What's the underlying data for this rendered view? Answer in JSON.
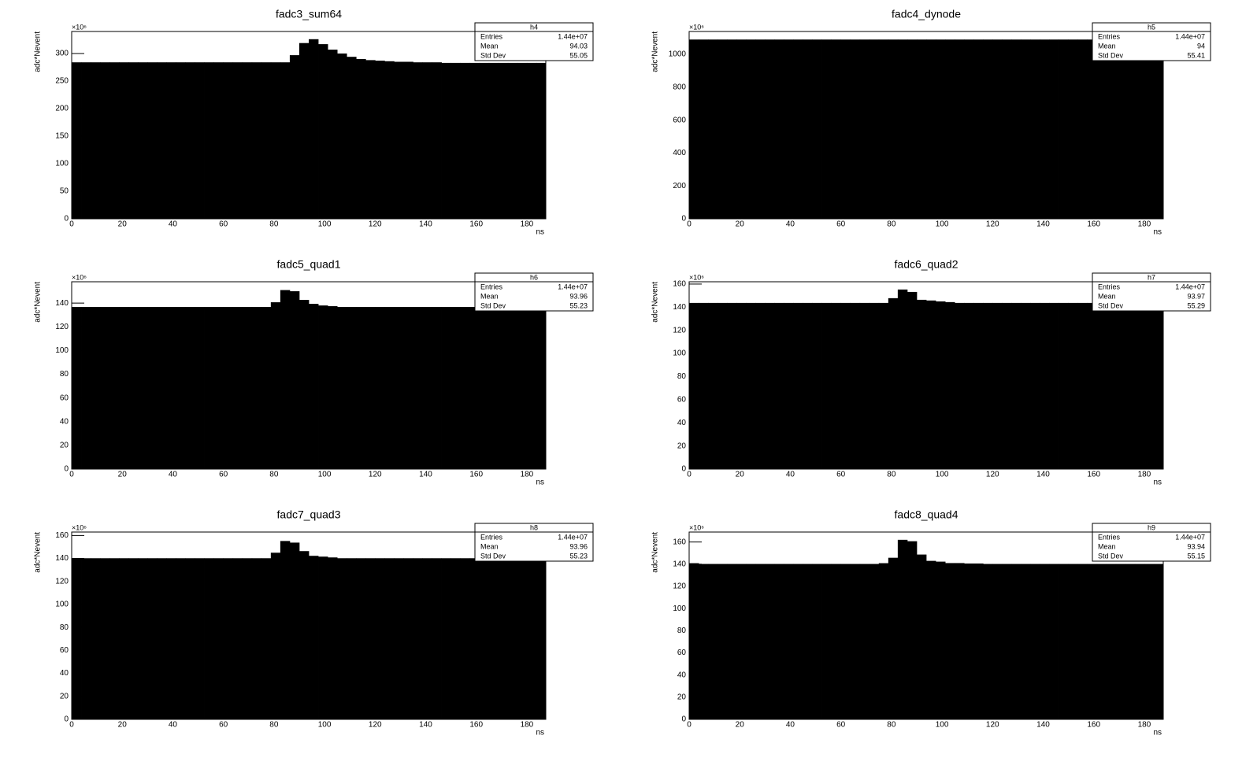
{
  "chart_data": [
    {
      "type": "histogram",
      "title": "fadc3_sum64",
      "xlabel": "ns",
      "ylabel": "adc*Nevent",
      "y_multiplier": "×10⁶",
      "color": "#000000",
      "stats": {
        "name": "h4",
        "rows": [
          [
            "Entries",
            "1.44e+07"
          ],
          [
            "Mean",
            "94.03"
          ],
          [
            "Std Dev",
            "55.05"
          ]
        ]
      },
      "xlim": [
        0,
        187.5
      ],
      "xticks": [
        0,
        20,
        40,
        60,
        80,
        100,
        120,
        140,
        160,
        180
      ],
      "ylim": [
        0,
        340
      ],
      "yticks": [
        0,
        50,
        100,
        150,
        200,
        250,
        300
      ],
      "bins": [
        0,
        3.75,
        7.5,
        11.25,
        15,
        18.75,
        22.5,
        26.25,
        30,
        33.75,
        37.5,
        41.25,
        45,
        48.75,
        52.5,
        56.25,
        60,
        63.75,
        67.5,
        71.25,
        75,
        78.75,
        82.5,
        86.25,
        90,
        93.75,
        97.5,
        101.25,
        105,
        108.75,
        112.5,
        116.25,
        120,
        123.75,
        127.5,
        131.25,
        135,
        138.75,
        142.5,
        146.25,
        150,
        153.75,
        157.5,
        161.25,
        165,
        168.75,
        172.5,
        176.25,
        180,
        183.75,
        187.5
      ],
      "values": [
        284,
        284,
        284,
        284,
        284,
        284,
        284,
        284,
        284,
        284,
        284,
        284,
        284,
        284,
        284,
        284,
        284,
        284,
        284,
        284,
        284,
        284,
        284,
        297,
        319,
        326,
        317,
        307,
        300,
        294,
        290,
        288,
        287,
        286,
        285,
        285,
        284,
        284,
        284,
        283,
        283,
        283,
        283,
        283,
        283,
        283,
        283,
        283,
        283,
        283
      ]
    },
    {
      "type": "histogram",
      "title": "fadc4_dynode",
      "xlabel": "ns",
      "ylabel": "adc*Nevent",
      "y_multiplier": "×10⁶",
      "color": "#000000",
      "stats": {
        "name": "h5",
        "rows": [
          [
            "Entries",
            "1.44e+07"
          ],
          [
            "Mean",
            "94"
          ],
          [
            "Std Dev",
            "55.41"
          ]
        ]
      },
      "xlim": [
        0,
        187.5
      ],
      "xticks": [
        0,
        20,
        40,
        60,
        80,
        100,
        120,
        140,
        160,
        180
      ],
      "ylim": [
        0,
        1139
      ],
      "yticks": [
        0,
        200,
        400,
        600,
        800,
        1000
      ],
      "bins": [
        0,
        3.75,
        7.5,
        11.25,
        15,
        18.75,
        22.5,
        26.25,
        30,
        33.75,
        37.5,
        41.25,
        45,
        48.75,
        52.5,
        56.25,
        60,
        63.75,
        67.5,
        71.25,
        75,
        78.75,
        82.5,
        86.25,
        90,
        93.75,
        97.5,
        101.25,
        105,
        108.75,
        112.5,
        116.25,
        120,
        123.75,
        127.5,
        131.25,
        135,
        138.75,
        142.5,
        146.25,
        150,
        153.75,
        157.5,
        161.25,
        165,
        168.75,
        172.5,
        176.25,
        180,
        183.75,
        187.5
      ],
      "values": [
        1090,
        1090,
        1090,
        1090,
        1090,
        1090,
        1090,
        1090,
        1090,
        1090,
        1090,
        1090,
        1090,
        1090,
        1090,
        1090,
        1090,
        1090,
        1090,
        1090,
        1090,
        1090,
        1090,
        1090,
        1090,
        1090,
        1090,
        1090,
        1090,
        1090,
        1090,
        1090,
        1090,
        1090,
        1090,
        1090,
        1090,
        1090,
        1090,
        1090,
        1090,
        1090,
        1090,
        1090,
        1090,
        1090,
        1090,
        1090,
        1090,
        1090
      ]
    },
    {
      "type": "histogram",
      "title": "fadc5_quad1",
      "xlabel": "ns",
      "ylabel": "adc*Nevent",
      "y_multiplier": "×10⁶",
      "color": "#000000",
      "stats": {
        "name": "h6",
        "rows": [
          [
            "Entries",
            "1.44e+07"
          ],
          [
            "Mean",
            "93.96"
          ],
          [
            "Std Dev",
            "55.23"
          ]
        ]
      },
      "xlim": [
        0,
        187.5
      ],
      "xticks": [
        0,
        20,
        40,
        60,
        80,
        100,
        120,
        140,
        160,
        180
      ],
      "ylim": [
        0,
        158
      ],
      "yticks": [
        0,
        20,
        40,
        60,
        80,
        100,
        120,
        140
      ],
      "bins": [
        0,
        3.75,
        7.5,
        11.25,
        15,
        18.75,
        22.5,
        26.25,
        30,
        33.75,
        37.5,
        41.25,
        45,
        48.75,
        52.5,
        56.25,
        60,
        63.75,
        67.5,
        71.25,
        75,
        78.75,
        82.5,
        86.25,
        90,
        93.75,
        97.5,
        101.25,
        105,
        108.75,
        112.5,
        116.25,
        120,
        123.75,
        127.5,
        131.25,
        135,
        138.75,
        142.5,
        146.25,
        150,
        153.75,
        157.5,
        161.25,
        165,
        168.75,
        172.5,
        176.25,
        180,
        183.75,
        187.5
      ],
      "values": [
        136.7,
        136.7,
        136.7,
        136.7,
        136.7,
        136.7,
        136.7,
        136.7,
        136.7,
        136.7,
        136.7,
        136.7,
        136.7,
        136.7,
        136.7,
        136.7,
        136.7,
        136.7,
        136.7,
        136.7,
        136.7,
        140.7,
        151,
        150,
        142.7,
        139.4,
        138,
        137.4,
        136.7,
        136.7,
        136.7,
        136.7,
        136.7,
        136.7,
        136.7,
        136.7,
        136.7,
        136.7,
        136.7,
        136.7,
        136.7,
        136.7,
        136.7,
        136.7,
        136.7,
        136.7,
        136.7,
        136.7,
        136.7,
        136.7
      ]
    },
    {
      "type": "histogram",
      "title": "fadc6_quad2",
      "xlabel": "ns",
      "ylabel": "adc*Nevent",
      "y_multiplier": "×10⁶",
      "color": "#000000",
      "stats": {
        "name": "h7",
        "rows": [
          [
            "Entries",
            "1.44e+07"
          ],
          [
            "Mean",
            "93.97"
          ],
          [
            "Std Dev",
            "55.29"
          ]
        ]
      },
      "xlim": [
        0,
        187.5
      ],
      "xticks": [
        0,
        20,
        40,
        60,
        80,
        100,
        120,
        140,
        160,
        180
      ],
      "ylim": [
        0,
        162
      ],
      "yticks": [
        0,
        20,
        40,
        60,
        80,
        100,
        120,
        140,
        160
      ],
      "bins": [
        0,
        3.75,
        7.5,
        11.25,
        15,
        18.75,
        22.5,
        26.25,
        30,
        33.75,
        37.5,
        41.25,
        45,
        48.75,
        52.5,
        56.25,
        60,
        63.75,
        67.5,
        71.25,
        75,
        78.75,
        82.5,
        86.25,
        90,
        93.75,
        97.5,
        101.25,
        105,
        108.75,
        112.5,
        116.25,
        120,
        123.75,
        127.5,
        131.25,
        135,
        138.75,
        142.5,
        146.25,
        150,
        153.75,
        157.5,
        161.25,
        165,
        168.75,
        172.5,
        176.25,
        180,
        183.75,
        187.5
      ],
      "values": [
        143.7,
        143.7,
        143.7,
        143.7,
        143.7,
        143.7,
        143.7,
        143.7,
        143.7,
        143.7,
        143.7,
        143.7,
        143.7,
        143.7,
        143.7,
        143.7,
        143.7,
        143.7,
        143.7,
        143.7,
        143.7,
        147.8,
        155.3,
        153.2,
        146.4,
        145.8,
        145,
        144.4,
        143.7,
        143.7,
        143.7,
        143.7,
        143.7,
        143.7,
        143.7,
        143.7,
        143.7,
        143.7,
        143.7,
        143.7,
        143.7,
        143.7,
        143.7,
        143.7,
        143.7,
        143.7,
        143.7,
        143.7,
        143.7,
        143.7
      ]
    },
    {
      "type": "histogram",
      "title": "fadc7_quad3",
      "xlabel": "ns",
      "ylabel": "adc*Nevent",
      "y_multiplier": "×10⁶",
      "color": "#000000",
      "stats": {
        "name": "h8",
        "rows": [
          [
            "Entries",
            "1.44e+07"
          ],
          [
            "Mean",
            "93.96"
          ],
          [
            "Std Dev",
            "55.23"
          ]
        ]
      },
      "xlim": [
        0,
        187.5
      ],
      "xticks": [
        0,
        20,
        40,
        60,
        80,
        100,
        120,
        140,
        160,
        180
      ],
      "ylim": [
        0,
        163
      ],
      "yticks": [
        0,
        20,
        40,
        60,
        80,
        100,
        120,
        140,
        160
      ],
      "bins": [
        0,
        3.75,
        7.5,
        11.25,
        15,
        18.75,
        22.5,
        26.25,
        30,
        33.75,
        37.5,
        41.25,
        45,
        48.75,
        52.5,
        56.25,
        60,
        63.75,
        67.5,
        71.25,
        75,
        78.75,
        82.5,
        86.25,
        90,
        93.75,
        97.5,
        101.25,
        105,
        108.75,
        112.5,
        116.25,
        120,
        123.75,
        127.5,
        131.25,
        135,
        138.75,
        142.5,
        146.25,
        150,
        153.75,
        157.5,
        161.25,
        165,
        168.75,
        172.5,
        176.25,
        180,
        183.75,
        187.5
      ],
      "values": [
        140.2,
        140.2,
        140.2,
        140.2,
        140.2,
        140.2,
        140.2,
        140.2,
        140.2,
        140.2,
        140.2,
        140.2,
        140.2,
        140.2,
        140.2,
        140.2,
        140.2,
        140.2,
        140.2,
        140.2,
        140.2,
        145,
        155.2,
        153.8,
        146.4,
        142.3,
        141.6,
        140.9,
        140.2,
        140.2,
        140.2,
        140.2,
        140.2,
        140.2,
        140.2,
        140.2,
        140.2,
        140.2,
        140.2,
        140.2,
        140.2,
        140.2,
        140.2,
        140.2,
        140.2,
        140.2,
        140.2,
        140.2,
        140.2,
        140.2
      ]
    },
    {
      "type": "histogram",
      "title": "fadc8_quad4",
      "xlabel": "ns",
      "ylabel": "adc*Nevent",
      "y_multiplier": "×10⁶",
      "color": "#000000",
      "stats": {
        "name": "h9",
        "rows": [
          [
            "Entries",
            "1.44e+07"
          ],
          [
            "Mean",
            "93.94"
          ],
          [
            "Std Dev",
            "55.15"
          ]
        ]
      },
      "xlim": [
        0,
        187.5
      ],
      "xticks": [
        0,
        20,
        40,
        60,
        80,
        100,
        120,
        140,
        160,
        180
      ],
      "ylim": [
        0,
        169
      ],
      "yticks": [
        0,
        20,
        40,
        60,
        80,
        100,
        120,
        140,
        160
      ],
      "bins": [
        0,
        3.75,
        7.5,
        11.25,
        15,
        18.75,
        22.5,
        26.25,
        30,
        33.75,
        37.5,
        41.25,
        45,
        48.75,
        52.5,
        56.25,
        60,
        63.75,
        67.5,
        71.25,
        75,
        78.75,
        82.5,
        86.25,
        90,
        93.75,
        97.5,
        101.25,
        105,
        108.75,
        112.5,
        116.25,
        120,
        123.75,
        127.5,
        131.25,
        135,
        138.75,
        142.5,
        146.25,
        150,
        153.75,
        157.5,
        161.25,
        165,
        168.75,
        172.5,
        176.25,
        180,
        183.75,
        187.5
      ],
      "values": [
        140.9,
        140.2,
        140.2,
        140.2,
        140.2,
        140.2,
        140.2,
        140.2,
        140.2,
        140.2,
        140.2,
        140.2,
        140.2,
        140.2,
        140.2,
        140.2,
        140.2,
        140.2,
        140.2,
        140.2,
        140.9,
        145.8,
        162,
        160.7,
        148.7,
        143,
        142.3,
        141,
        141,
        140.6,
        140.6,
        140.2,
        140.2,
        140.2,
        140.2,
        140.2,
        140.2,
        140.2,
        140.2,
        140.2,
        140.2,
        140.2,
        140.2,
        140.2,
        140.2,
        140.2,
        140.2,
        140.2,
        140.2,
        140.2
      ]
    }
  ]
}
